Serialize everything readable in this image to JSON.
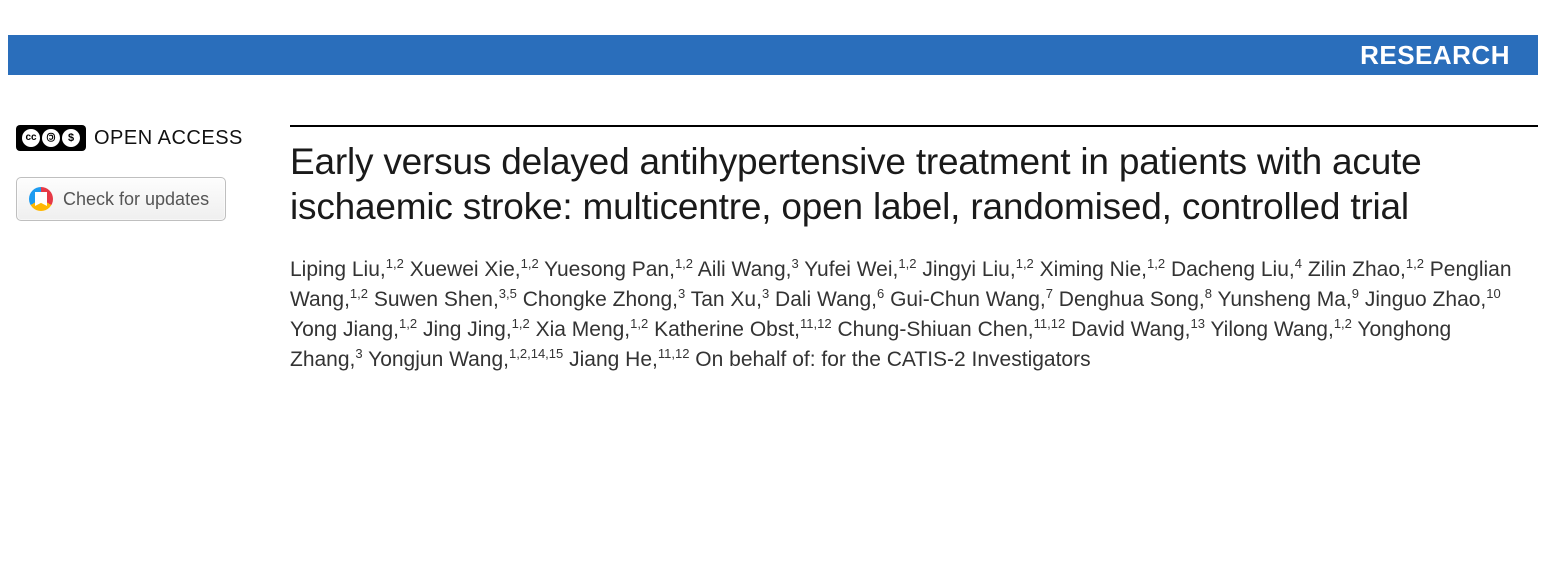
{
  "banner": {
    "label": "RESEARCH",
    "bg_color": "#2a6ebb",
    "text_color": "#ffffff"
  },
  "sidebar": {
    "open_access_label": "OPEN ACCESS",
    "cc_glyphs": [
      "cc",
      "①",
      "$"
    ],
    "updates_button_label": "Check for updates"
  },
  "article": {
    "title": "Early versus delayed antihypertensive treatment in patients with acute ischaemic stroke: multicentre, open label, randomised, controlled trial",
    "authors": [
      {
        "name": "Liping Liu",
        "affil": "1,2"
      },
      {
        "name": "Xuewei Xie",
        "affil": "1,2"
      },
      {
        "name": "Yuesong Pan",
        "affil": "1,2"
      },
      {
        "name": "Aili Wang",
        "affil": "3"
      },
      {
        "name": "Yufei Wei",
        "affil": "1,2"
      },
      {
        "name": "Jingyi Liu",
        "affil": "1,2"
      },
      {
        "name": "Ximing Nie",
        "affil": "1,2"
      },
      {
        "name": "Dacheng Liu",
        "affil": "4"
      },
      {
        "name": "Zilin Zhao",
        "affil": "1,2"
      },
      {
        "name": "Penglian Wang",
        "affil": "1,2"
      },
      {
        "name": "Suwen Shen",
        "affil": "3,5"
      },
      {
        "name": "Chongke Zhong",
        "affil": "3"
      },
      {
        "name": "Tan Xu",
        "affil": "3"
      },
      {
        "name": "Dali Wang",
        "affil": "6"
      },
      {
        "name": "Gui-Chun Wang",
        "affil": "7"
      },
      {
        "name": "Denghua Song",
        "affil": "8"
      },
      {
        "name": "Yunsheng Ma",
        "affil": "9"
      },
      {
        "name": "Jinguo Zhao",
        "affil": "10"
      },
      {
        "name": "Yong Jiang",
        "affil": "1,2"
      },
      {
        "name": "Jing Jing",
        "affil": "1,2"
      },
      {
        "name": "Xia Meng",
        "affil": "1,2"
      },
      {
        "name": "Katherine Obst",
        "affil": "11,12"
      },
      {
        "name": "Chung-Shiuan Chen",
        "affil": "11,12"
      },
      {
        "name": "David Wang",
        "affil": "13"
      },
      {
        "name": "Yilong Wang",
        "affil": "1,2"
      },
      {
        "name": "Yonghong Zhang",
        "affil": "3"
      },
      {
        "name": "Yongjun Wang",
        "affil": "1,2,14,15"
      },
      {
        "name": "Jiang He",
        "affil": "11,12"
      }
    ],
    "on_behalf": "On behalf of: for the CATIS-2 Investigators"
  },
  "style": {
    "title_fontsize": 37,
    "author_fontsize": 21,
    "banner_fontsize": 26,
    "rule_color": "#000000"
  }
}
